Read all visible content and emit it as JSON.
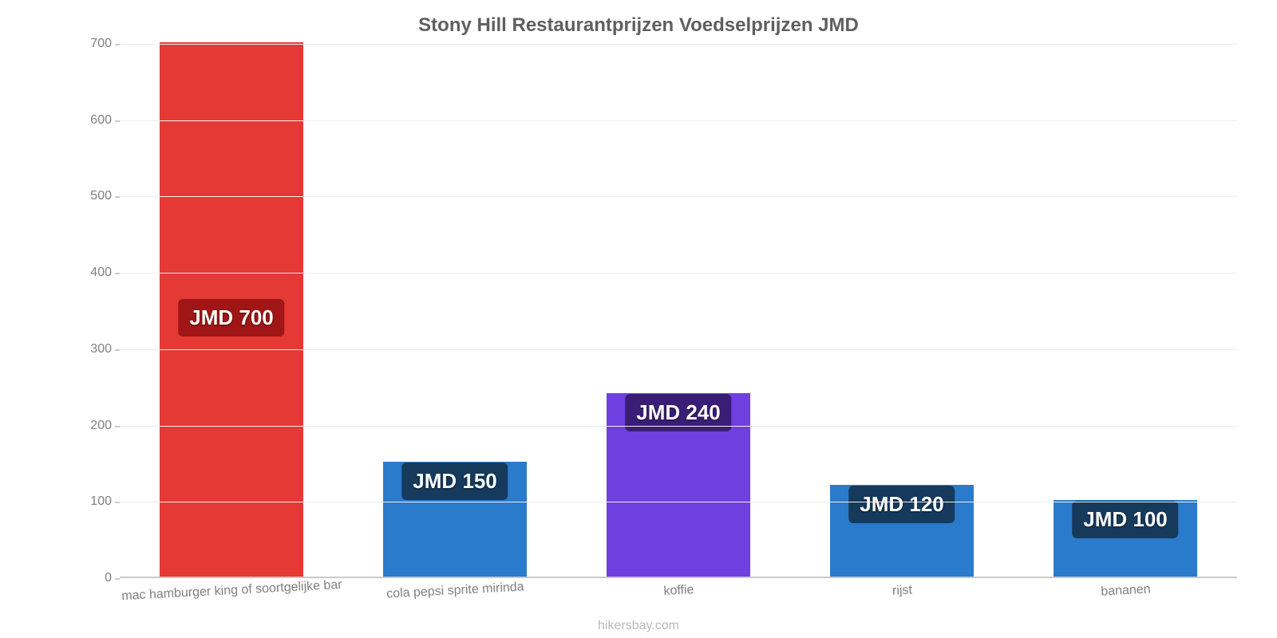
{
  "chart": {
    "type": "bar",
    "title": "Stony Hill Restaurantprijzen Voedselprijzen JMD",
    "title_fontsize": 24,
    "title_color": "#5f5f5f",
    "background_color": "#ffffff",
    "grid_color": "#eeeeee",
    "axis_color": "#c9c9c9",
    "tick_label_color": "#808080",
    "tick_label_fontsize": 16,
    "ylim": [
      0,
      700
    ],
    "ytick_step": 100,
    "yticks": [
      0,
      100,
      200,
      300,
      400,
      500,
      600,
      700
    ],
    "bar_width": 0.64,
    "categories": [
      "mac hamburger king of soortgelijke bar",
      "cola pepsi sprite mirinda",
      "koffie",
      "rijst",
      "bananen"
    ],
    "values": [
      700,
      150,
      240,
      120,
      100
    ],
    "value_labels": [
      "JMD 700",
      "JMD 150",
      "JMD 240",
      "JMD 120",
      "JMD 100"
    ],
    "bar_colors": [
      "#e53935",
      "#2a7bcb",
      "#6f3fe0",
      "#2a7bcb",
      "#2a7bcb"
    ],
    "badge_colors": [
      "#a01616",
      "#163a5c",
      "#3a1e75",
      "#163a5c",
      "#163a5c"
    ],
    "badge_fontsize": 26,
    "xlabel_rotation_deg": -3,
    "attribution": "hikersbay.com",
    "attribution_color": "#b8b8b8"
  }
}
